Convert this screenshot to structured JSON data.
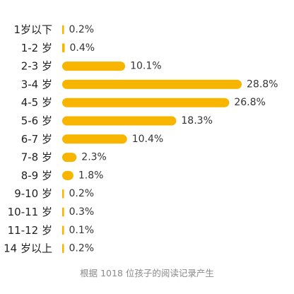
{
  "chart_data": {
    "type": "bar",
    "orientation": "horizontal",
    "categories": [
      "1岁以下",
      "1-2 岁",
      "2-3 岁",
      "3-4 岁",
      "4-5 岁",
      "5-6 岁",
      "6-7 岁",
      "7-8 岁",
      "8-9 岁",
      "9-10 岁",
      "10-11 岁",
      "11-12 岁",
      "14 岁以上"
    ],
    "values": [
      0.2,
      0.4,
      10.1,
      28.8,
      26.8,
      18.3,
      10.4,
      2.3,
      1.8,
      0.2,
      0.3,
      0.1,
      0.2
    ],
    "value_labels": [
      "0.2%",
      "0.4%",
      "10.1%",
      "28.8%",
      "26.8%",
      "18.3%",
      "10.4%",
      "2.3%",
      "1.8%",
      "0.2%",
      "0.3%",
      "0.1%",
      "0.2%"
    ],
    "bar_color": "#F7B500",
    "grid": false,
    "legend": "none"
  },
  "caption": "根据 1018 位孩子的阅读记录产生"
}
